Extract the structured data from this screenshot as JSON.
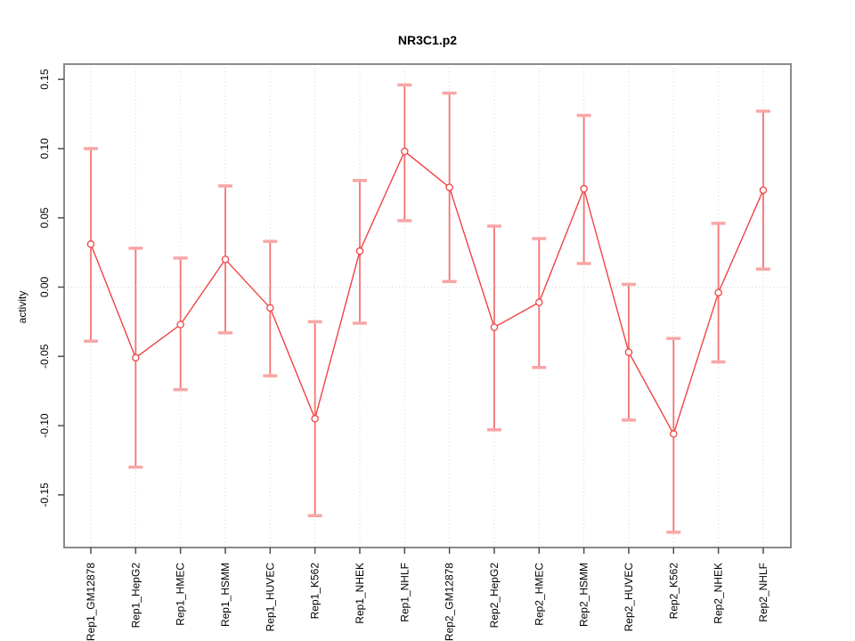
{
  "figure": {
    "title": "NR3C1.p2",
    "ylabel": "activity"
  },
  "chart_data": {
    "type": "scatter",
    "subtype": "points-with-error-bars-and-connecting-line",
    "title": "NR3C1.p2",
    "xlabel": "",
    "ylabel": "activity",
    "categories": [
      "Rep1_GM12878",
      "Rep1_HepG2",
      "Rep1_HMEC",
      "Rep1_HSMM",
      "Rep1_HUVEC",
      "Rep1_K562",
      "Rep1_NHEK",
      "Rep1_NHLF",
      "Rep2_GM12878",
      "Rep2_HepG2",
      "Rep2_HMEC",
      "Rep2_HSMM",
      "Rep2_HUVEC",
      "Rep2_K562",
      "Rep2_NHEK",
      "Rep2_NHLF"
    ],
    "series": [
      {
        "name": "activity",
        "values": [
          0.031,
          -0.051,
          -0.027,
          0.02,
          -0.015,
          -0.095,
          0.026,
          0.098,
          0.072,
          -0.029,
          -0.011,
          0.071,
          -0.047,
          -0.106,
          -0.004,
          0.07
        ],
        "ci_high": [
          0.1,
          0.028,
          0.021,
          0.073,
          0.033,
          -0.025,
          0.077,
          0.146,
          0.14,
          0.044,
          0.035,
          0.124,
          0.002,
          -0.037,
          0.046,
          0.127
        ],
        "ci_low": [
          -0.039,
          -0.13,
          -0.074,
          -0.033,
          -0.064,
          -0.165,
          -0.026,
          0.048,
          0.004,
          -0.103,
          -0.058,
          0.017,
          -0.096,
          -0.177,
          -0.054,
          0.013
        ]
      }
    ],
    "ylim": [
      -0.188,
      0.161
    ],
    "yticks": {
      "values": [
        0.15,
        0.1,
        0.05,
        0.0,
        -0.05,
        -0.1,
        -0.15
      ],
      "labels": [
        "0.15",
        "0.10",
        "0.05",
        "0.00",
        "-0.05",
        "-0.10",
        "-0.15"
      ]
    },
    "zero_line": true,
    "grid": "vertical-dotted-per-category",
    "legend": "none",
    "colors": {
      "line": "#ef4444",
      "point_stroke": "#ef4444",
      "whisker": "#f37272",
      "whisker_cap": "#f9a6a6",
      "grid": "#d6d6d6",
      "zero_line": "#d6d6d6",
      "box": "#8a8a8a",
      "tick": "#4d4d4d",
      "text": "#000000",
      "background": "#ffffff"
    }
  }
}
